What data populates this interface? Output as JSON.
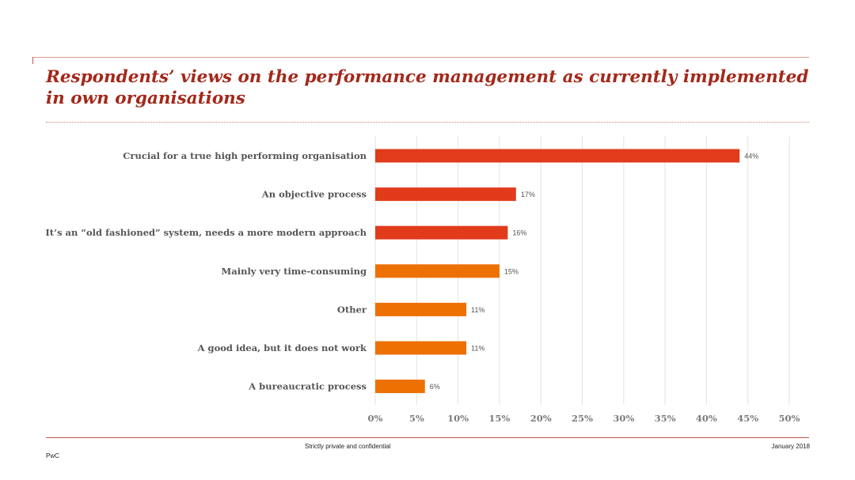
{
  "slide": {
    "title": "Respondents’ views on the performance management as currently implemented in own organisations",
    "footer_center": "Strictly private and confidential",
    "footer_right": "January 2018",
    "footer_left": "PwC"
  },
  "colors": {
    "title": "#a3281a",
    "bar_red": "#e13b1c",
    "bar_orange": "#ee7002",
    "grid": "#e3e3e3",
    "rule": "#c45a4a"
  },
  "chart_data": {
    "type": "bar",
    "orientation": "horizontal",
    "categories": [
      "Crucial for a true high performing organisation",
      "An objective process",
      "It’s an “old fashioned” system, needs a more modern approach",
      "Mainly very time-consuming",
      "Other",
      "A good idea, but it does not work",
      "A bureaucratic process"
    ],
    "values": [
      44,
      17,
      16,
      15,
      11,
      11,
      6
    ],
    "value_labels": [
      "44%",
      "17%",
      "16%",
      "15%",
      "11%",
      "11%",
      "6%"
    ],
    "bar_colors": [
      "#e13b1c",
      "#e13b1c",
      "#e13b1c",
      "#ee7002",
      "#ee7002",
      "#ee7002",
      "#ee7002"
    ],
    "xlim": [
      0,
      50
    ],
    "x_ticks": [
      "0%",
      "5%",
      "10%",
      "15%",
      "20%",
      "25%",
      "30%",
      "35%",
      "40%",
      "45%",
      "50%"
    ],
    "grid": "vertical"
  }
}
